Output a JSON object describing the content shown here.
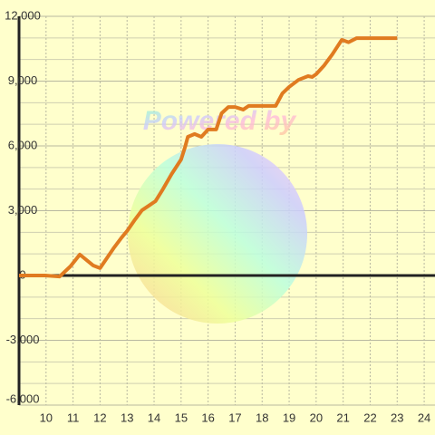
{
  "chart_data": {
    "type": "line",
    "watermark": "Powered by",
    "x": [
      9.0,
      9.97,
      10.5,
      10.9,
      11.25,
      11.75,
      12.0,
      12.5,
      12.8,
      13.0,
      13.3,
      13.55,
      13.85,
      14.05,
      14.3,
      14.65,
      15.0,
      15.15,
      15.25,
      15.5,
      15.75,
      16.0,
      16.3,
      16.5,
      16.75,
      17.0,
      17.3,
      17.5,
      18.5,
      18.75,
      19.0,
      19.35,
      19.7,
      19.85,
      20.0,
      20.3,
      20.6,
      20.75,
      20.95,
      21.2,
      21.5,
      23.0
    ],
    "series": [
      {
        "color": "#e07b20",
        "values": [
          0,
          0,
          -50,
          420,
          970,
          460,
          340,
          1260,
          1760,
          2060,
          2600,
          3020,
          3270,
          3440,
          3940,
          4700,
          5370,
          5960,
          6420,
          6550,
          6420,
          6760,
          6760,
          7510,
          7800,
          7800,
          7680,
          7850,
          7850,
          8430,
          8730,
          9060,
          9230,
          9190,
          9320,
          9730,
          10240,
          10530,
          10910,
          10800,
          10990,
          10990
        ]
      }
    ],
    "xlim": [
      9,
      24.4
    ],
    "xticks": [
      10,
      11,
      12,
      13,
      14,
      15,
      16,
      17,
      18,
      19,
      20,
      21,
      22,
      23,
      24
    ],
    "ylim": [
      -6000,
      12000
    ],
    "yticks": [
      {
        "value": -6000,
        "label": "-6,000"
      },
      {
        "value": -3000,
        "label": "-3,000"
      },
      0,
      {
        "value": 3000,
        "label": "3,000"
      },
      {
        "value": 6000,
        "label": "6,000"
      },
      {
        "value": 9000,
        "label": "9,000"
      },
      {
        "value": 12000,
        "label": "12,000"
      }
    ],
    "yminorticks": [
      -5000,
      -4000,
      -2000,
      -1000,
      1000,
      2000,
      4000,
      5000,
      7000,
      8000,
      10000,
      11000
    ],
    "grid": true
  }
}
